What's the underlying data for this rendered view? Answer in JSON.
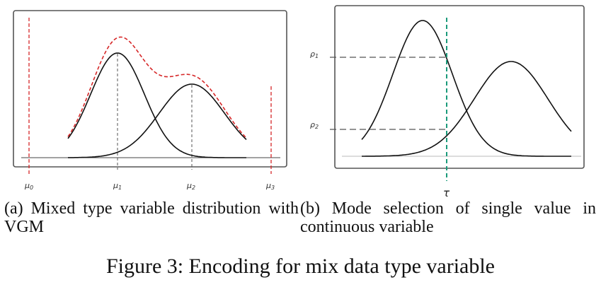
{
  "panel_a": {
    "caption": "(a) Mixed type variable distribution with VGM",
    "labels": [
      "μ0",
      "μ1",
      "μ2",
      "μ3"
    ],
    "label_subscripts": [
      "0",
      "1",
      "2",
      "3"
    ],
    "mixture_color": "#d62728",
    "component_color": "#111111"
  },
  "panel_b": {
    "caption": "(b) Mode selection of single value in continuous variable",
    "rho_labels": [
      "ρ1",
      "ρ2"
    ],
    "rho_subscripts": [
      "1",
      "2"
    ],
    "tau_label": "τ",
    "threshold_color": "#1a9a7a"
  },
  "figure_caption": "Figure 3: Encoding for mix data type variable"
}
